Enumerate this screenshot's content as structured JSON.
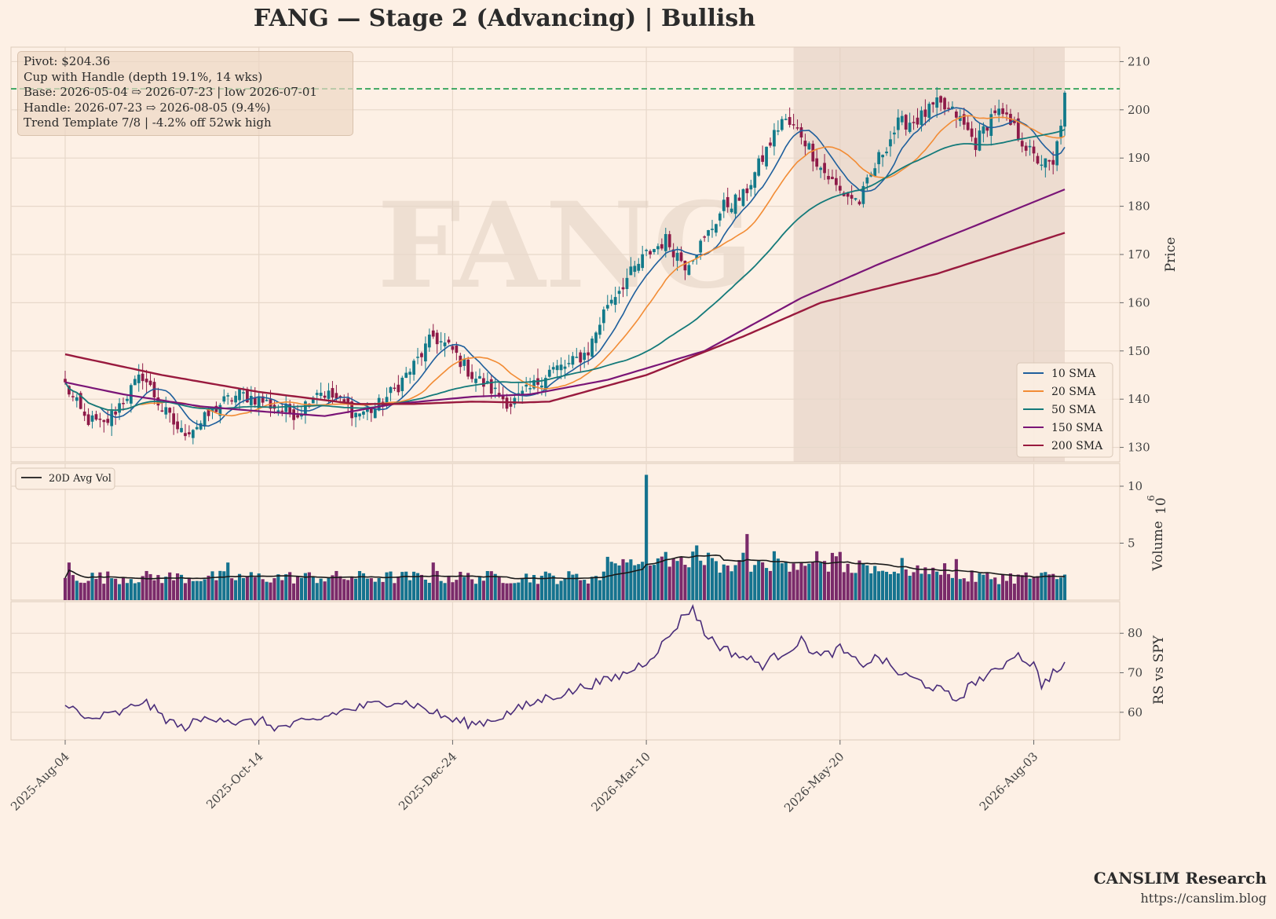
{
  "title": "FANG  —  Stage 2 (Advancing)  |  Bullish",
  "watermark": "FANG",
  "annotation": {
    "lines": [
      "Pivot: $204.36",
      "Cup with Handle  (depth 19.1%, 14 wks)",
      "Base: 2026-05-04 ⇨ 2026-07-23  |  low 2026-07-01",
      "Handle: 2026-07-23 ⇨ 2026-08-05 (9.4%)",
      "Trend Template 7/8  |  -4.2% off 52wk high"
    ]
  },
  "brand": {
    "name": "CANSLIM Research",
    "url": "https://canslim.blog"
  },
  "colors": {
    "background": "#fdf0e5",
    "grid": "#e7d8ca",
    "up": "#127a8a",
    "down": "#8e1a48",
    "sma10": "#1f5f9c",
    "sma20": "#f28c35",
    "sma50": "#147a7a",
    "sma150": "#7a1577",
    "sma200": "#991a3e",
    "pivot": "#1a9a4a",
    "vol_up": "#15738f",
    "vol_down": "#7a2a6a",
    "avg_vol": "#1a1a1a",
    "rs": "#4a2d7a",
    "base_shade": "#e2cfc1"
  },
  "chart_data": [
    {
      "type": "candlestick",
      "panel": "price",
      "ylabel": "Price",
      "ylim": [
        127,
        213
      ],
      "yticks": [
        130,
        140,
        150,
        160,
        170,
        180,
        190,
        200,
        210
      ],
      "x_tick_labels": [
        "2025-Aug-04",
        "2025-Oct-14",
        "2025-Dec-24",
        "2026-Mar-10",
        "2026-May-20",
        "2026-Aug-03"
      ],
      "x_tick_index": [
        0,
        50,
        100,
        150,
        200,
        250
      ],
      "num_bars": 259,
      "close_anchors": [
        [
          0,
          143
        ],
        [
          5,
          136
        ],
        [
          10,
          134.5
        ],
        [
          15,
          140
        ],
        [
          20,
          145
        ],
        [
          25,
          138
        ],
        [
          30,
          133
        ],
        [
          35,
          135
        ],
        [
          40,
          139
        ],
        [
          45,
          141
        ],
        [
          50,
          140
        ],
        [
          55,
          138
        ],
        [
          60,
          137
        ],
        [
          65,
          142
        ],
        [
          70,
          140
        ],
        [
          75,
          137
        ],
        [
          80,
          138
        ],
        [
          85,
          142
        ],
        [
          90,
          147
        ],
        [
          95,
          153
        ],
        [
          100,
          150
        ],
        [
          105,
          145
        ],
        [
          110,
          142
        ],
        [
          115,
          139
        ],
        [
          120,
          142
        ],
        [
          125,
          146
        ],
        [
          130,
          147
        ],
        [
          135,
          150
        ],
        [
          140,
          160
        ],
        [
          145,
          165
        ],
        [
          150,
          170
        ],
        [
          155,
          173
        ],
        [
          160,
          168
        ],
        [
          165,
          173
        ],
        [
          170,
          180
        ],
        [
          175,
          182
        ],
        [
          180,
          190
        ],
        [
          185,
          198
        ],
        [
          190,
          195
        ],
        [
          195,
          188
        ],
        [
          200,
          183
        ],
        [
          205,
          181
        ],
        [
          210,
          190
        ],
        [
          215,
          197
        ],
        [
          220,
          198
        ],
        [
          225,
          201
        ],
        [
          230,
          199
        ],
        [
          235,
          193
        ],
        [
          240,
          200
        ],
        [
          245,
          196
        ],
        [
          250,
          190
        ],
        [
          255,
          188
        ],
        [
          258,
          202.5
        ]
      ],
      "pivot": 204.36,
      "base_range_index": [
        188,
        258
      ],
      "sma_series": [
        {
          "name": "10 SMA",
          "window": 10
        },
        {
          "name": "20 SMA",
          "window": 20
        },
        {
          "name": "50 SMA",
          "window": 50
        },
        {
          "name": "150 SMA",
          "window": 150
        },
        {
          "name": "200 SMA",
          "window": 200
        }
      ],
      "sma_anchors": {
        "150 SMA": [
          [
            0,
            143.5
          ],
          [
            15,
            141
          ],
          [
            35,
            138.5
          ],
          [
            50,
            137.5
          ],
          [
            67,
            136.5
          ],
          [
            85,
            139
          ],
          [
            105,
            140.5
          ],
          [
            120,
            141
          ],
          [
            140,
            144
          ],
          [
            165,
            150
          ],
          [
            190,
            161
          ],
          [
            210,
            168
          ],
          [
            235,
            176
          ],
          [
            258,
            183.5
          ]
        ],
        "200 SMA": [
          [
            0,
            149.3
          ],
          [
            25,
            145
          ],
          [
            50,
            141.5
          ],
          [
            75,
            139
          ],
          [
            90,
            139
          ],
          [
            105,
            139.5
          ],
          [
            118,
            139.3
          ],
          [
            125,
            139.5
          ],
          [
            150,
            145
          ],
          [
            175,
            153
          ],
          [
            195,
            160
          ],
          [
            225,
            166
          ],
          [
            258,
            174.5
          ]
        ]
      },
      "legend": [
        "10 SMA",
        "20 SMA",
        "50 SMA",
        "150 SMA",
        "200 SMA"
      ],
      "legend_position": "lower-right"
    },
    {
      "type": "bar",
      "panel": "volume",
      "ylabel": "Volume",
      "yscale_label": "10^6",
      "ylim": [
        0,
        12
      ],
      "yticks": [
        5,
        10
      ],
      "legend": [
        "20D Avg Vol"
      ],
      "legend_position": "upper-left",
      "volume_spikes": [
        [
          150,
          11
        ],
        [
          176,
          5.8
        ],
        [
          163,
          4.8
        ],
        [
          140,
          3.8
        ],
        [
          195,
          3.3
        ],
        [
          230,
          3.6
        ],
        [
          216,
          3.7
        ],
        [
          42,
          3.3
        ],
        [
          95,
          3.3
        ],
        [
          1,
          3.3
        ]
      ]
    },
    {
      "type": "line",
      "panel": "rs",
      "ylabel": "RS vs SPY",
      "ylim": [
        53,
        88
      ],
      "yticks": [
        60,
        70,
        80
      ],
      "anchors": [
        [
          0,
          63
        ],
        [
          5,
          58
        ],
        [
          10,
          59
        ],
        [
          15,
          60
        ],
        [
          20,
          63
        ],
        [
          25,
          59
        ],
        [
          30,
          56
        ],
        [
          35,
          58
        ],
        [
          40,
          59
        ],
        [
          45,
          57
        ],
        [
          50,
          58
        ],
        [
          55,
          56
        ],
        [
          60,
          57
        ],
        [
          65,
          58
        ],
        [
          70,
          60
        ],
        [
          75,
          61
        ],
        [
          80,
          62
        ],
        [
          85,
          63
        ],
        [
          90,
          62
        ],
        [
          95,
          60
        ],
        [
          100,
          58
        ],
        [
          105,
          57
        ],
        [
          110,
          58
        ],
        [
          115,
          60
        ],
        [
          120,
          62
        ],
        [
          125,
          64
        ],
        [
          130,
          65
        ],
        [
          135,
          67
        ],
        [
          140,
          68
        ],
        [
          145,
          70
        ],
        [
          150,
          73
        ],
        [
          155,
          78
        ],
        [
          160,
          85
        ],
        [
          162,
          86.5
        ],
        [
          165,
          80
        ],
        [
          170,
          76
        ],
        [
          175,
          74
        ],
        [
          180,
          72
        ],
        [
          185,
          75
        ],
        [
          190,
          78
        ],
        [
          195,
          74
        ],
        [
          200,
          76
        ],
        [
          205,
          72
        ],
        [
          210,
          74
        ],
        [
          215,
          70
        ],
        [
          220,
          68
        ],
        [
          225,
          66
        ],
        [
          230,
          63
        ],
        [
          235,
          68
        ],
        [
          240,
          70
        ],
        [
          245,
          75
        ],
        [
          250,
          72
        ],
        [
          252,
          67
        ],
        [
          255,
          70
        ],
        [
          258,
          71.5
        ]
      ]
    }
  ]
}
